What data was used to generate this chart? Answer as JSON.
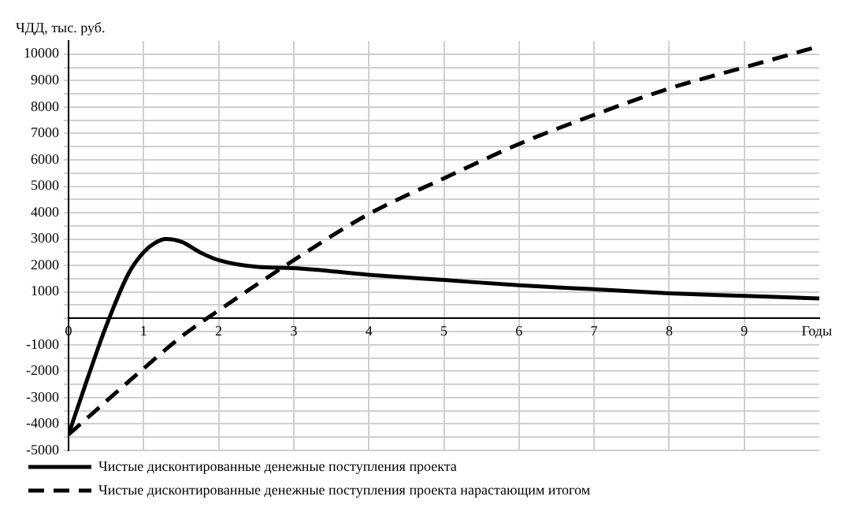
{
  "chart_data": {
    "type": "line",
    "ylabel": "ЧДД, тыс. руб.",
    "xlabel": "Годы",
    "xlim": [
      0,
      10
    ],
    "xticks": [
      0,
      1,
      2,
      3,
      4,
      5,
      6,
      7,
      8,
      9
    ],
    "ylim": [
      -5000,
      10500
    ],
    "yticks": [
      -5000,
      {
        "value": -4500,
        "label": null
      },
      -4000,
      {
        "value": -3500,
        "label": null
      },
      -3000,
      {
        "value": -2500,
        "label": null
      },
      -2000,
      {
        "value": -1500,
        "label": null
      },
      -1000,
      {
        "value": -500,
        "label": null
      },
      {
        "value": 0,
        "label": null
      },
      {
        "value": 500,
        "label": null
      },
      1000,
      {
        "value": 1500,
        "label": null
      },
      2000,
      {
        "value": 2500,
        "label": null
      },
      3000,
      {
        "value": 3500,
        "label": null
      },
      4000,
      {
        "value": 4500,
        "label": null
      },
      5000,
      {
        "value": 5500,
        "label": null
      },
      6000,
      {
        "value": 6500,
        "label": null
      },
      7000,
      {
        "value": 7500,
        "label": null
      },
      8000,
      {
        "value": 8500,
        "label": null
      },
      9000,
      {
        "value": 9500,
        "label": null
      },
      10000
    ],
    "grid": true,
    "legend": "bottom",
    "marker": "none",
    "series": [
      {
        "name": "Чистые дисконтированные денежные поступления проекта",
        "color": "#000000",
        "line_style": "solid",
        "x": [
          0,
          0.25,
          0.5,
          0.8,
          1,
          1.15,
          1.3,
          1.5,
          1.75,
          2,
          2.5,
          3,
          4,
          5,
          6,
          7,
          8,
          9,
          10
        ],
        "values": [
          -4400,
          -2300,
          -300,
          1700,
          2500,
          2850,
          3000,
          2900,
          2500,
          2200,
          1950,
          1900,
          1650,
          1450,
          1250,
          1100,
          950,
          850,
          750
        ]
      },
      {
        "name": "Чистые дисконтированные денежные поступления проекта нарастающим итогом",
        "color": "#000000",
        "line_style": "dashed",
        "x": [
          0,
          1,
          1.5,
          2,
          3,
          4,
          5,
          6,
          7,
          8,
          9,
          10
        ],
        "values": [
          -4400,
          -1900,
          -700,
          300,
          2200,
          3950,
          5300,
          6600,
          7700,
          8700,
          9500,
          10300
        ]
      }
    ]
  }
}
